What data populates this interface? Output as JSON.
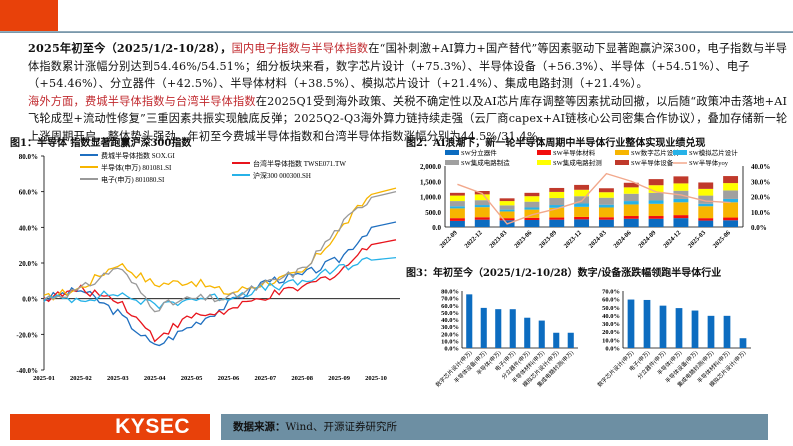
{
  "summary": {
    "para1": {
      "lead": "2025年初至今（2025/1/2-10/28），",
      "highlight": "国内电子指数与半导体指数",
      "text": "在“国补刺激+AI算力+国产替代”等因素驱动下显著跑赢沪深300，电子指数与半导体指数累计涨幅分别达到54.46%/54.51%；细分板块来看，数字芯片设计（+75.3%）、半导体设备（+56.3%）、半导体（+54.51%）、电子（+54.46%）、分立器件（+42.5%）、半导体材料（+38.5%）、模拟芯片设计（+21.4%）、集成电路封测（+21.4%）。"
    },
    "para2": {
      "lead": "海外方面，",
      "highlight": "费城半导体指数与台湾半导体指数",
      "text": "在2025Q1受到海外政策、关税不确定性以及AI芯片库存调整等因素扰动回撤，以后随“政策冲击落地+AI飞轮成型+流动性修复”三重因素共振实现触底反弹；2025Q2-Q3海外算力链持续走强（云厂商capex+AI链核心公司密集合作协议），叠加存储新一轮上涨周期开启，整体势头强劲。年初至今费城半导体指数和台湾半导体指数涨幅分别为44.5%/31.4%。"
    }
  },
  "footer": {
    "logo": "KYSEC",
    "source_label": "数据来源：",
    "source_text": "Wind、开源证券研究所"
  },
  "colors": {
    "brand_orange": "#e8410a",
    "footer_bar": "#6d8fa3",
    "highlight_red": "#c0282d",
    "bar_blue": "#0c6cc0"
  },
  "chart_data": [
    {
      "id": "fig1",
      "type": "line",
      "title": "图1：半导体 指数显著跑赢沪深300指数",
      "xlabel": "",
      "ylabel": "",
      "x": [
        "2025-01",
        "2025-02",
        "2025-03",
        "2025-04",
        "2025-05",
        "2025-06",
        "2025-07",
        "2025-08",
        "2025-09",
        "2025-10"
      ],
      "ylim": [
        -40,
        80
      ],
      "yticks": [
        "80.0%",
        "60.0%",
        "40.0%",
        "20.0%",
        "0.0%",
        "-20.0%",
        "-40.0%"
      ],
      "legend_position": "top",
      "series": [
        {
          "name": "费城半导体指数 SOX.GI",
          "color": "#1f6fc0",
          "values": [
            0,
            5,
            -8,
            -27,
            -15,
            -3,
            10,
            13,
            22,
            43
          ]
        },
        {
          "name": "台湾半导体指数 TWSE071.TW",
          "color": "#e8141c",
          "values": [
            0,
            5,
            0,
            -22,
            -10,
            -7,
            1,
            6,
            15,
            33
          ]
        },
        {
          "name": "半导体(申万) 801081.SI",
          "color": "#f7b500",
          "values": [
            0,
            6,
            20,
            8,
            10,
            3,
            9,
            14,
            38,
            62
          ]
        },
        {
          "name": "沪深300 000300.SH",
          "color": "#27b2e8",
          "values": [
            0,
            0,
            3,
            -4,
            0,
            1,
            6,
            9,
            17,
            23
          ]
        },
        {
          "name": "电子(申万) 801080.SI",
          "color": "#999999",
          "values": [
            0,
            5,
            18,
            -5,
            0,
            0,
            8,
            16,
            40,
            60
          ]
        }
      ]
    },
    {
      "id": "fig2",
      "type": "bar",
      "stacked": true,
      "title": "图2：AI浪潮下，新一轮半导体周期中半导体行业整体实现业绩兑现",
      "categories": [
        "2022-09",
        "2022-12",
        "2023-03",
        "2023-06",
        "2023-09",
        "2023-12",
        "2024-03",
        "2024-06",
        "2024-09",
        "2024-12",
        "2025-03",
        "2025-06"
      ],
      "ylim": [
        0,
        2000
      ],
      "yticks": [
        "2,000.0",
        "1,500.0",
        "1,000.0",
        "500.0",
        "0.0"
      ],
      "y2lim": [
        0,
        40
      ],
      "y2ticks": [
        "40.0%",
        "30.0%",
        "20.0%",
        "10.0%",
        "0.0%"
      ],
      "legend_position": "top",
      "series": [
        {
          "name": "SW分立器件",
          "color": "#0c6cc0",
          "values": [
            200,
            240,
            220,
            230,
            240,
            250,
            240,
            270,
            270,
            290,
            210,
            220
          ]
        },
        {
          "name": "SW半导体材料",
          "color": "#f20d0d",
          "values": [
            90,
            80,
            70,
            70,
            70,
            80,
            80,
            90,
            90,
            100,
            80,
            90
          ]
        },
        {
          "name": "SW数字芯片设计",
          "color": "#f7b500",
          "values": [
            320,
            330,
            220,
            270,
            320,
            330,
            320,
            380,
            400,
            420,
            390,
            500
          ]
        },
        {
          "name": "SW模拟芯片设计",
          "color": "#27b2e8",
          "values": [
            70,
            70,
            60,
            70,
            90,
            110,
            90,
            110,
            110,
            110,
            80,
            110
          ]
        },
        {
          "name": "SW集成电路制造",
          "color": "#a0a0a0",
          "values": [
            170,
            160,
            140,
            190,
            230,
            240,
            230,
            240,
            250,
            270,
            270,
            280
          ]
        },
        {
          "name": "SW集成电路封测",
          "color": "#ffff00",
          "values": [
            180,
            190,
            140,
            180,
            200,
            210,
            180,
            210,
            250,
            240,
            220,
            240
          ]
        },
        {
          "name": "SW半导体设备",
          "color": "#c0392b",
          "values": [
            90,
            110,
            90,
            110,
            130,
            160,
            130,
            150,
            200,
            230,
            210,
            230
          ]
        }
      ],
      "line_series": {
        "name": "SW半导体yoy",
        "color": "#f2a88c",
        "axis": "right",
        "values": [
          28,
          22,
          2,
          8,
          12,
          17,
          35,
          30,
          23,
          21,
          17,
          16
        ]
      }
    },
    {
      "id": "fig3a",
      "type": "bar",
      "title": "图3：年初至今（2025/1/2-10/28）数字/设备涨跌幅领跑半导体行业",
      "categories": [
        "数字芯片设计(申万)",
        "半导体设备(申万)",
        "半导体(申万)",
        "电子(申万)",
        "分立器件(申万)",
        "半导体材料(申万)",
        "模拟芯片设计(申万)",
        "集成电路封测(申万)"
      ],
      "values": [
        75.3,
        56.3,
        54.51,
        54.46,
        42.5,
        38.5,
        21.4,
        21.4
      ],
      "ylim": [
        0,
        80
      ],
      "yticks": [
        "80.0%",
        "70.0%",
        "60.0%",
        "50.0%",
        "40.0%",
        "30.0%",
        "20.0%",
        "10.0%",
        "0.0%"
      ],
      "color": "#0c6cc0"
    },
    {
      "id": "fig3b",
      "type": "bar",
      "title": "",
      "categories": [
        "数字芯片设计(申万)",
        "电子(申万)",
        "分立器件(申万)",
        "半导体(申万)",
        "半导体设备(申万)",
        "集成电路封测(申万)",
        "半导体材料(申万)",
        "模拟芯片设计(申万)"
      ],
      "values": [
        59.5,
        59,
        52,
        49,
        46,
        39.5,
        39.5,
        12
      ],
      "ylim": [
        0,
        70
      ],
      "yticks": [
        "70.0%",
        "60.0%",
        "50.0%",
        "40.0%",
        "30.0%",
        "20.0%",
        "10.0%",
        "0.0%"
      ],
      "color": "#0c6cc0"
    }
  ]
}
